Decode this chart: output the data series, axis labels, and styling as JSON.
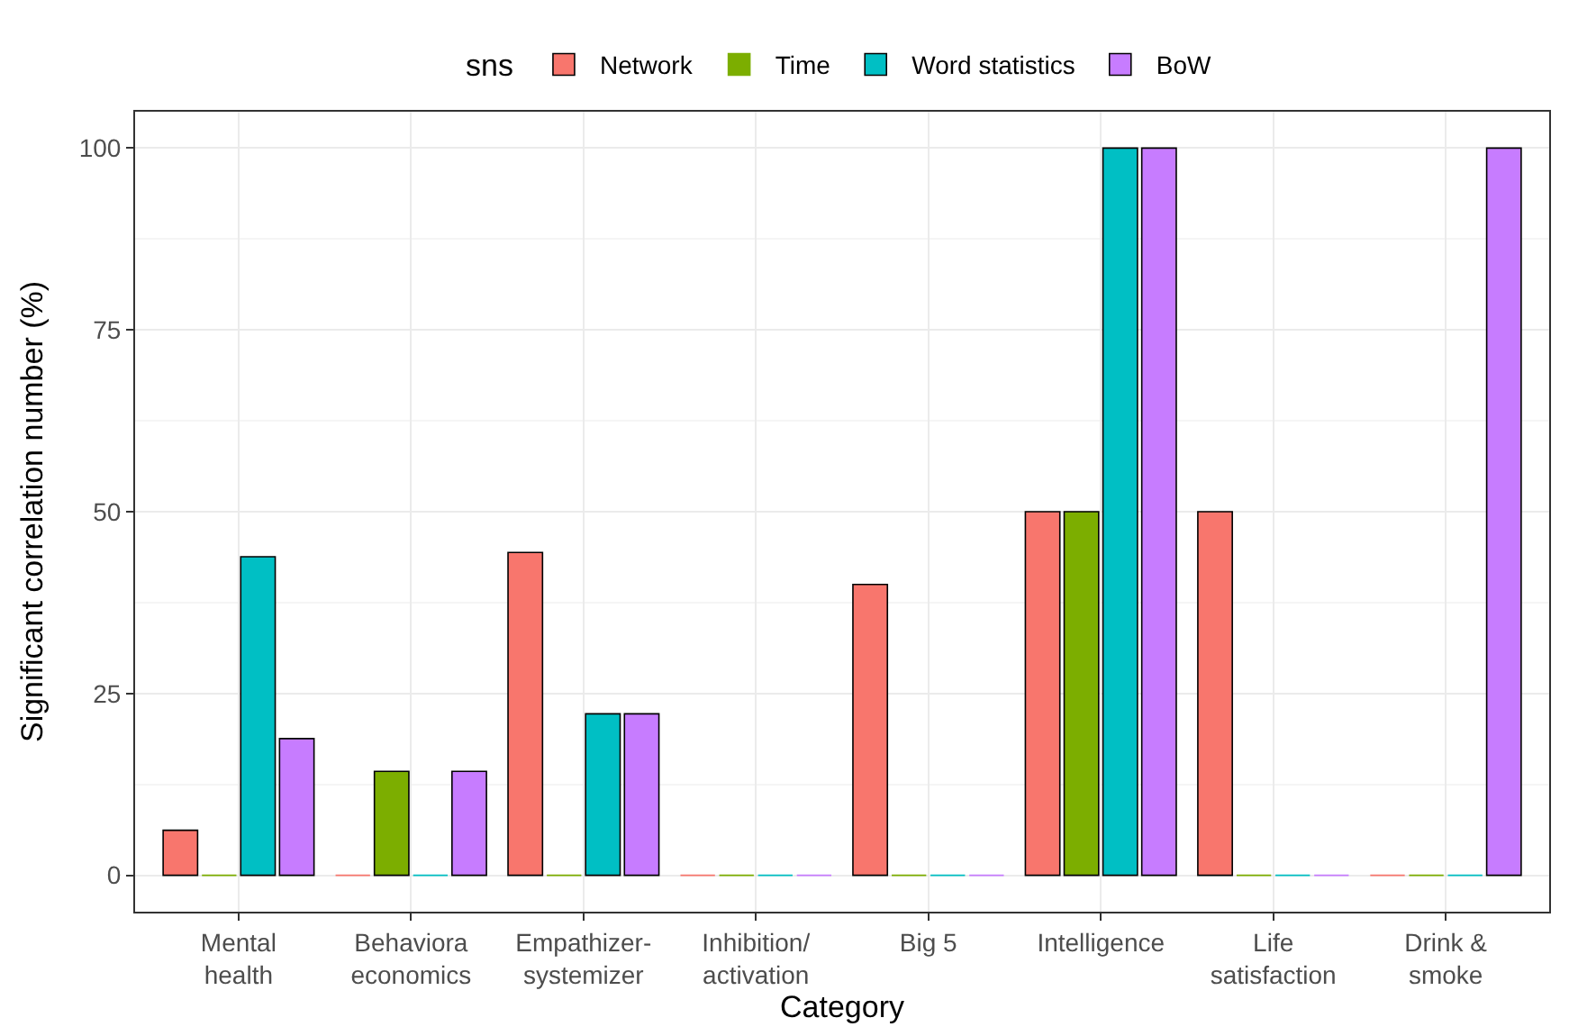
{
  "chart_data": {
    "type": "bar",
    "xlabel": "Category",
    "ylabel": "Significant correlation number (%)",
    "legend_title": "sns",
    "legend": "top",
    "categories": [
      "Mental\nhealth",
      "Behaviora\neconomics",
      "Empathizer-\nsystemizer",
      "Inhibition/\nactivation",
      "Big 5",
      "Intelligence",
      "Life\nsatisfaction",
      "Drink &\nsmoke"
    ],
    "series": [
      {
        "name": "Network",
        "color": "#f8766d",
        "values": [
          6.2,
          0,
          44.4,
          0,
          40,
          50,
          50,
          0
        ]
      },
      {
        "name": "Time",
        "color": "#7cae00",
        "values": [
          0,
          14.3,
          0,
          0,
          0,
          50,
          0,
          0
        ]
      },
      {
        "name": "Word statistics",
        "color": "#00bfc4",
        "values": [
          43.8,
          0,
          22.2,
          0,
          0,
          100,
          0,
          0
        ]
      },
      {
        "name": "BoW",
        "color": "#c77cff",
        "values": [
          18.8,
          14.3,
          22.2,
          0,
          0,
          100,
          0,
          100
        ]
      }
    ],
    "ylim": [
      -5,
      105
    ],
    "yticks": [
      0,
      25,
      50,
      75,
      100
    ],
    "grid": true
  }
}
